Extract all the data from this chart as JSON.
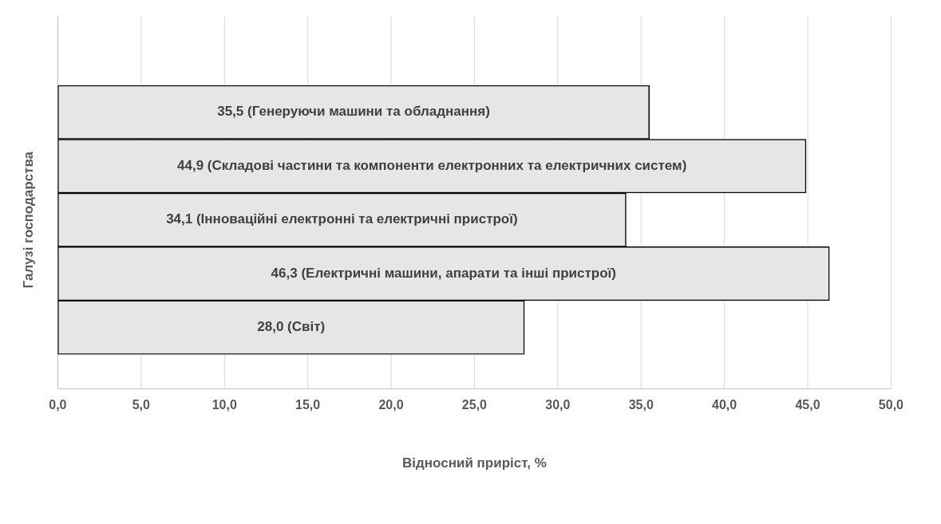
{
  "chart_data": {
    "type": "bar",
    "orientation": "horizontal",
    "xlabel": "Відносний приріст, %",
    "ylabel": "Галузі господарства",
    "categories": [
      null,
      null,
      null,
      null,
      null
    ],
    "values": [
      35.5,
      44.9,
      34.1,
      46.3,
      28.0
    ],
    "value_labels": [
      "35,5 (Генеруючи машини та обладнання)",
      "44,9 (Складові частини та компоненти електронних та електричних систем)",
      "34,1 (Інноваційні електронні та електричні пристрої)",
      "46,3 (Електричні машини, апарати та інші пристрої)",
      "28,0 (Світ)"
    ],
    "color": "#e7e6e6",
    "xlim": [
      0,
      50
    ],
    "xticks": [
      {
        "value": 0,
        "label": "0,0"
      },
      {
        "value": 5,
        "label": "5,0"
      },
      {
        "value": 10,
        "label": "10,0"
      },
      {
        "value": 15,
        "label": "15,0"
      },
      {
        "value": 20,
        "label": "20,0"
      },
      {
        "value": 25,
        "label": "25,0"
      },
      {
        "value": 30,
        "label": "30,0"
      },
      {
        "value": 35,
        "label": "35,0"
      },
      {
        "value": 40,
        "label": "40,0"
      },
      {
        "value": 45,
        "label": "45,0"
      },
      {
        "value": 50,
        "label": "50,0"
      }
    ],
    "grid": "x",
    "tick_labels": "x",
    "legend": false
  }
}
